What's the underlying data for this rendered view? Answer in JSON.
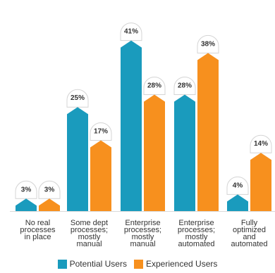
{
  "chart_data": {
    "type": "bar",
    "categories": [
      [
        "No real",
        "processes",
        "in place"
      ],
      [
        "Some dept",
        "processes;",
        "mostly",
        "manual"
      ],
      [
        "Enterprise",
        "processes;",
        "mostly",
        "manual"
      ],
      [
        "Enterprise",
        "processes;",
        "mostly",
        "automated"
      ],
      [
        "Fully",
        "optimized",
        "and",
        "automated"
      ]
    ],
    "series": [
      {
        "name": "Potential Users",
        "color": "#1a9bbd",
        "values": [
          3,
          25,
          41,
          28,
          4
        ],
        "labels": [
          "3%",
          "25%",
          "41%",
          "28%",
          "4%"
        ]
      },
      {
        "name": "Experienced Users",
        "color": "#f7901e",
        "values": [
          3,
          17,
          28,
          38,
          14
        ],
        "labels": [
          "3%",
          "17%",
          "28%",
          "38%",
          "14%"
        ]
      }
    ],
    "ylim": [
      0,
      45
    ],
    "grid": false,
    "legend_position": "bottom"
  }
}
